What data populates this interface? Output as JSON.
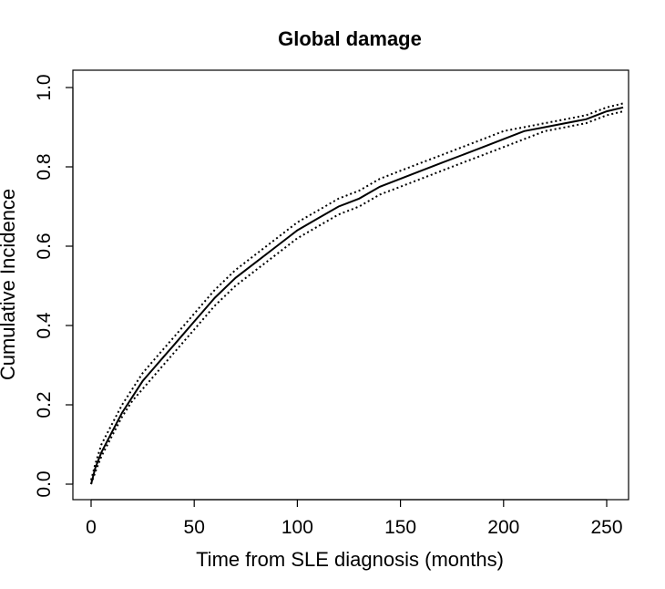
{
  "chart_data": {
    "type": "line",
    "title": "Global damage",
    "xlabel": "Time from SLE diagnosis (months)",
    "ylabel": "Cumulative Incidence",
    "xlim": [
      0,
      260
    ],
    "ylim": [
      0,
      1.0
    ],
    "xticks": [
      0,
      50,
      100,
      150,
      200,
      250
    ],
    "yticks": [
      0.0,
      0.2,
      0.4,
      0.6,
      0.8,
      1.0
    ],
    "xtick_labels": [
      "0",
      "50",
      "100",
      "150",
      "200",
      "250"
    ],
    "ytick_labels": [
      "0.0",
      "0.2",
      "0.4",
      "0.6",
      "0.8",
      "1.0"
    ],
    "grid": false,
    "series": [
      {
        "style": "solid",
        "x": [
          0,
          2,
          5,
          10,
          15,
          20,
          25,
          30,
          35,
          40,
          45,
          50,
          55,
          60,
          70,
          80,
          90,
          100,
          110,
          120,
          130,
          140,
          150,
          160,
          170,
          180,
          190,
          200,
          210,
          220,
          230,
          240,
          250,
          258
        ],
        "y": [
          0.0,
          0.04,
          0.08,
          0.13,
          0.18,
          0.22,
          0.26,
          0.29,
          0.32,
          0.35,
          0.38,
          0.41,
          0.44,
          0.47,
          0.52,
          0.56,
          0.6,
          0.64,
          0.67,
          0.7,
          0.72,
          0.75,
          0.77,
          0.79,
          0.81,
          0.83,
          0.85,
          0.87,
          0.89,
          0.9,
          0.91,
          0.92,
          0.94,
          0.95
        ]
      },
      {
        "style": "dotted",
        "x": [
          0,
          2,
          5,
          10,
          15,
          20,
          25,
          30,
          35,
          40,
          45,
          50,
          55,
          60,
          70,
          80,
          90,
          100,
          110,
          120,
          130,
          140,
          150,
          160,
          170,
          180,
          190,
          200,
          210,
          220,
          230,
          240,
          250,
          258
        ],
        "y": [
          0.01,
          0.05,
          0.1,
          0.15,
          0.2,
          0.24,
          0.28,
          0.31,
          0.34,
          0.37,
          0.4,
          0.43,
          0.46,
          0.49,
          0.54,
          0.58,
          0.62,
          0.66,
          0.69,
          0.72,
          0.74,
          0.77,
          0.79,
          0.81,
          0.83,
          0.85,
          0.87,
          0.89,
          0.9,
          0.91,
          0.92,
          0.93,
          0.95,
          0.96
        ]
      },
      {
        "style": "dotted",
        "x": [
          0,
          2,
          5,
          10,
          15,
          20,
          25,
          30,
          35,
          40,
          45,
          50,
          55,
          60,
          70,
          80,
          90,
          100,
          110,
          120,
          130,
          140,
          150,
          160,
          170,
          180,
          190,
          200,
          210,
          220,
          230,
          240,
          250,
          258
        ],
        "y": [
          0.0,
          0.03,
          0.07,
          0.12,
          0.17,
          0.21,
          0.24,
          0.27,
          0.3,
          0.33,
          0.36,
          0.39,
          0.42,
          0.45,
          0.5,
          0.54,
          0.58,
          0.62,
          0.65,
          0.68,
          0.7,
          0.73,
          0.75,
          0.77,
          0.79,
          0.81,
          0.83,
          0.85,
          0.87,
          0.89,
          0.9,
          0.91,
          0.93,
          0.94
        ]
      }
    ]
  }
}
